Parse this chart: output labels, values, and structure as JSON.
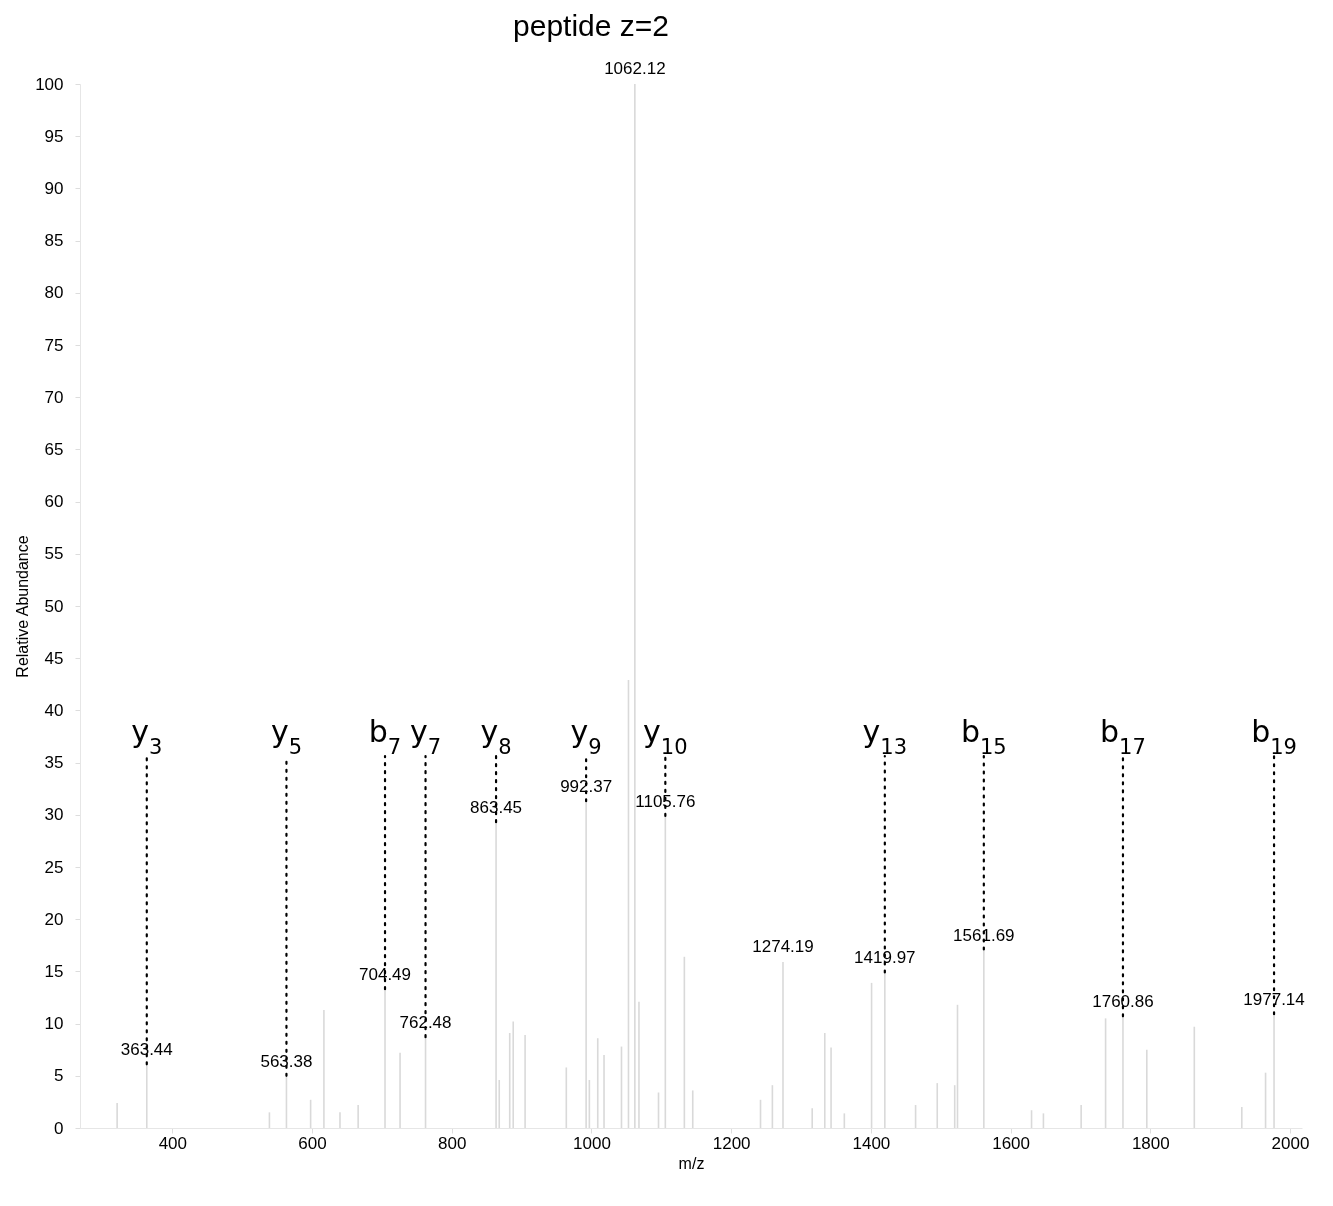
{
  "chart_data": {
    "type": "bar",
    "title": "peptide z=2",
    "xlabel": "m/z",
    "ylabel": "Relative Abundance",
    "color": "#d9d9d9",
    "x": [
      321,
      363.44,
      539,
      563.38,
      598,
      617,
      640,
      666,
      704.49,
      726,
      762.48,
      863.45,
      868,
      883,
      888,
      905,
      964,
      992.37,
      997,
      1009,
      1018,
      1043,
      1053,
      1062.12,
      1068,
      1096,
      1105.76,
      1133,
      1145,
      1242,
      1259,
      1274.19,
      1316,
      1334,
      1343,
      1362,
      1401,
      1419.97,
      1464,
      1495,
      1520,
      1524,
      1561.69,
      1630,
      1647,
      1701,
      1736,
      1760.86,
      1795,
      1863,
      1931,
      1965,
      1977.14
    ],
    "values": [
      2.4,
      6.0,
      1.5,
      4.9,
      2.7,
      11.3,
      1.5,
      2.2,
      13.2,
      7.2,
      8.6,
      29.2,
      4.6,
      9.1,
      10.2,
      8.9,
      5.8,
      31.2,
      4.6,
      8.6,
      7.0,
      7.8,
      42.9,
      100,
      12.1,
      3.4,
      29.8,
      16.4,
      3.6,
      2.7,
      4.1,
      15.9,
      1.9,
      9.1,
      7.7,
      1.4,
      13.9,
      14.8,
      2.2,
      4.3,
      4.1,
      11.8,
      17.0,
      1.7,
      1.4,
      2.2,
      10.5,
      10.6,
      7.5,
      9.7,
      2.0,
      5.3,
      10.8
    ],
    "annotations": [
      {
        "text": "363.44",
        "x": 363.44,
        "y": 6.0
      },
      {
        "text": "563.38",
        "x": 563.38,
        "y": 4.9
      },
      {
        "text": "704.49",
        "x": 704.49,
        "y": 13.2
      },
      {
        "text": "762.48",
        "x": 762.48,
        "y": 8.6
      },
      {
        "text": "863.45",
        "x": 863.45,
        "y": 29.2
      },
      {
        "text": "992.37",
        "x": 992.37,
        "y": 31.2
      },
      {
        "text": "1062.12",
        "x": 1062.12,
        "y": 100
      },
      {
        "text": "1105.76",
        "x": 1105.76,
        "y": 29.8
      },
      {
        "text": "1274.19",
        "x": 1274.19,
        "y": 15.9
      },
      {
        "text": "1419.97",
        "x": 1419.97,
        "y": 14.8
      },
      {
        "text": "1561.69",
        "x": 1561.69,
        "y": 17.0
      },
      {
        "text": "1760.86",
        "x": 1760.86,
        "y": 10.6
      },
      {
        "text": "1977.14",
        "x": 1977.14,
        "y": 10.8
      },
      {
        "text": "y$_{3}$",
        "x": 363.44,
        "y": 6.0
      },
      {
        "text": "y$_{5}$",
        "x": 563.38,
        "y": 4.9
      },
      {
        "text": "b$_{7}$",
        "x": 704.49,
        "y": 13.2
      },
      {
        "text": "y$_{7}$",
        "x": 762.48,
        "y": 8.6
      },
      {
        "text": "y$_{8}$",
        "x": 863.45,
        "y": 29.2
      },
      {
        "text": "y$_{9}$",
        "x": 992.37,
        "y": 31.2
      },
      {
        "text": "y$_{10}$",
        "x": 1105.76,
        "y": 29.8
      },
      {
        "text": "y$_{13}$",
        "x": 1419.97,
        "y": 14.8
      },
      {
        "text": "b$_{15}$",
        "x": 1561.69,
        "y": 17.0
      },
      {
        "text": "b$_{17}$",
        "x": 1760.86,
        "y": 10.6
      },
      {
        "text": "b$_{19}$",
        "x": 1977.14,
        "y": 10.8
      }
    ],
    "xlim": [
      275,
      2010
    ],
    "xticks": [
      400,
      600,
      800,
      1000,
      1200,
      1400,
      1600,
      1800,
      2000
    ],
    "ylim": [
      0,
      100
    ],
    "yticks": [
      0,
      5,
      10,
      15,
      20,
      25,
      30,
      35,
      40,
      45,
      50,
      55,
      60,
      65,
      70,
      75,
      80,
      85,
      90,
      95,
      100
    ]
  }
}
